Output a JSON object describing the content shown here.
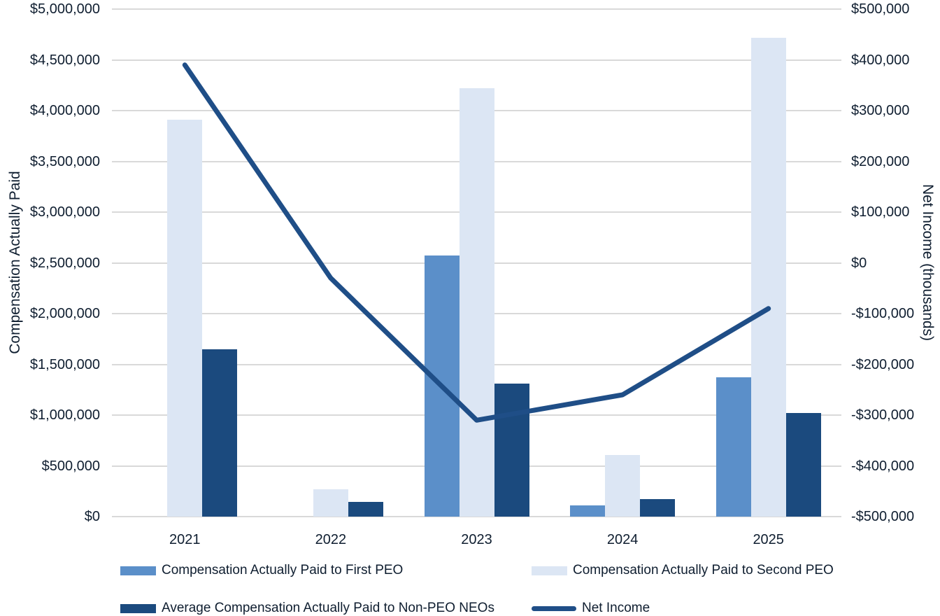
{
  "chart_data": {
    "type": "bar+line combo",
    "categories": [
      "2021",
      "2022",
      "2023",
      "2024",
      "2025"
    ],
    "bar_series": [
      {
        "name": "Compensation Actually Paid to First PEO",
        "color": "#5B8FC9",
        "axis": "left",
        "values": [
          null,
          null,
          2570000,
          110000,
          1370000
        ]
      },
      {
        "name": "Compensation Actually Paid to Second PEO",
        "color": "#DCE6F4",
        "axis": "left",
        "values": [
          3910000,
          270000,
          4220000,
          610000,
          4720000
        ]
      },
      {
        "name": "Average Compensation Actually Paid to Non-PEO NEOs",
        "color": "#1B4A7E",
        "axis": "left",
        "values": [
          1650000,
          145000,
          1310000,
          175000,
          1020000
        ]
      }
    ],
    "line_series": {
      "name": "Net Income",
      "color": "#1F4E87",
      "axis": "right",
      "values": [
        390000,
        -30000,
        -310000,
        -260000,
        -90000
      ]
    },
    "left_axis": {
      "label": "Compensation Actually Paid",
      "min": 0,
      "max": 5000000,
      "step": 500000,
      "ticks": [
        "$5,000,000",
        "$4,500,000",
        "$4,000,000",
        "$3,500,000",
        "$3,000,000",
        "$2,500,000",
        "$2,000,000",
        "$1,500,000",
        "$1,000,000",
        "$500,000",
        "$0"
      ]
    },
    "right_axis": {
      "label": "Net Income (thousands)",
      "min": -500000,
      "max": 500000,
      "step": 100000,
      "ticks": [
        "$500,000",
        "$400,000",
        "$300,000",
        "$200,000",
        "$100,000",
        "$0",
        "-$100,000",
        "-$200,000",
        "-$300,000",
        "-$400,000",
        "-$500,000"
      ]
    },
    "grid": true,
    "legend_position": "bottom",
    "legend": [
      {
        "label": "Compensation Actually Paid to First PEO",
        "swatch": "bar",
        "color": "#5B8FC9",
        "col": 0,
        "row": 0
      },
      {
        "label": "Compensation Actually Paid to Second PEO",
        "swatch": "bar",
        "color": "#DCE6F4",
        "col": 1,
        "row": 0
      },
      {
        "label": "Average Compensation Actually Paid to Non-PEO NEOs",
        "swatch": "bar",
        "color": "#1B4A7E",
        "col": 0,
        "row": 1
      },
      {
        "label": "Net Income",
        "swatch": "line",
        "color": "#1F4E87",
        "col": 1,
        "row": 1
      }
    ],
    "colors": {
      "gridline": "#D9D9D9",
      "text": "#0F1E30",
      "background": "#FFFFFF"
    }
  }
}
